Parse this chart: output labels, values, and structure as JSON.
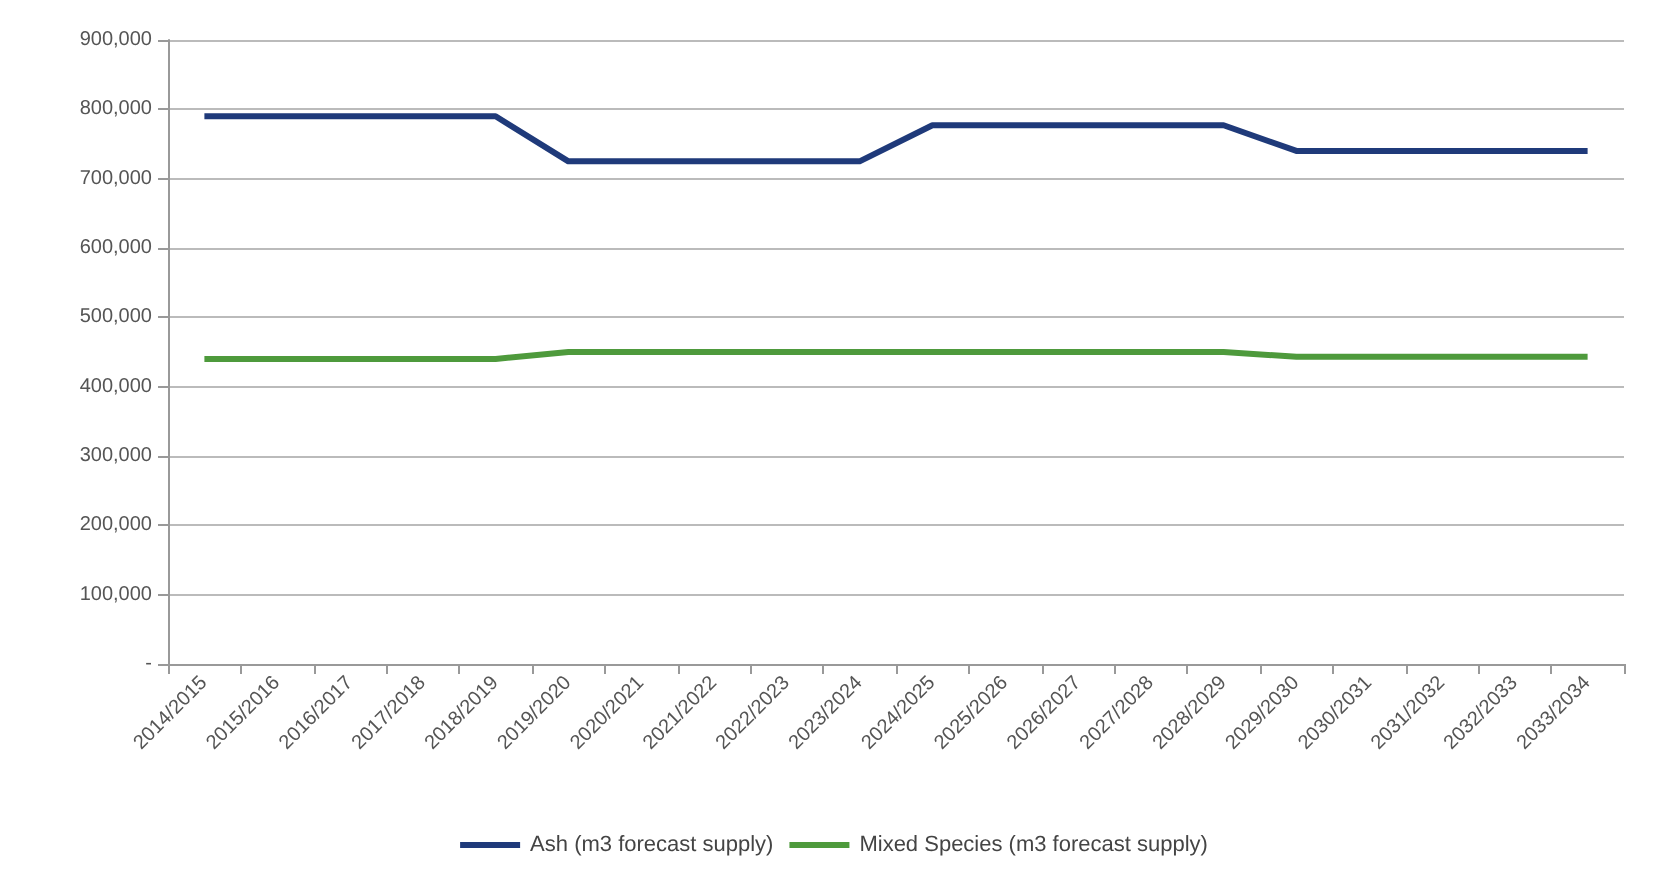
{
  "chart_data": {
    "type": "line",
    "categories": [
      "2014/2015",
      "2015/2016",
      "2016/2017",
      "2017/2018",
      "2018/2019",
      "2019/2020",
      "2020/2021",
      "2021/2022",
      "2022/2023",
      "2023/2024",
      "2024/2025",
      "2025/2026",
      "2026/2027",
      "2027/2028",
      "2028/2029",
      "2029/2030",
      "2030/2031",
      "2031/2032",
      "2032/2033",
      "2033/2034"
    ],
    "series": [
      {
        "name": "Ash (m3 forecast supply)",
        "color": "#1f3a7a",
        "values": [
          790000,
          790000,
          790000,
          790000,
          790000,
          725000,
          725000,
          725000,
          725000,
          725000,
          777000,
          777000,
          777000,
          777000,
          777000,
          740000,
          740000,
          740000,
          740000,
          740000
        ]
      },
      {
        "name": "Mixed Species (m3 forecast supply)",
        "color": "#4e9a3c",
        "values": [
          440000,
          440000,
          440000,
          440000,
          440000,
          450000,
          450000,
          450000,
          450000,
          450000,
          450000,
          450000,
          450000,
          450000,
          450000,
          443000,
          443000,
          443000,
          443000,
          443000
        ]
      }
    ],
    "ylim": [
      0,
      900000
    ],
    "yticks": [
      {
        "value": 0,
        "label": "-"
      },
      {
        "value": 100000,
        "label": "100,000"
      },
      {
        "value": 200000,
        "label": "200,000"
      },
      {
        "value": 300000,
        "label": "300,000"
      },
      {
        "value": 400000,
        "label": "400,000"
      },
      {
        "value": 500000,
        "label": "500,000"
      },
      {
        "value": 600000,
        "label": "600,000"
      },
      {
        "value": 700000,
        "label": "700,000"
      },
      {
        "value": 800000,
        "label": "800,000"
      },
      {
        "value": 900000,
        "label": "900,000"
      }
    ],
    "grid": "y",
    "legend": "bottom",
    "marker": "none",
    "line_style": "solid"
  }
}
